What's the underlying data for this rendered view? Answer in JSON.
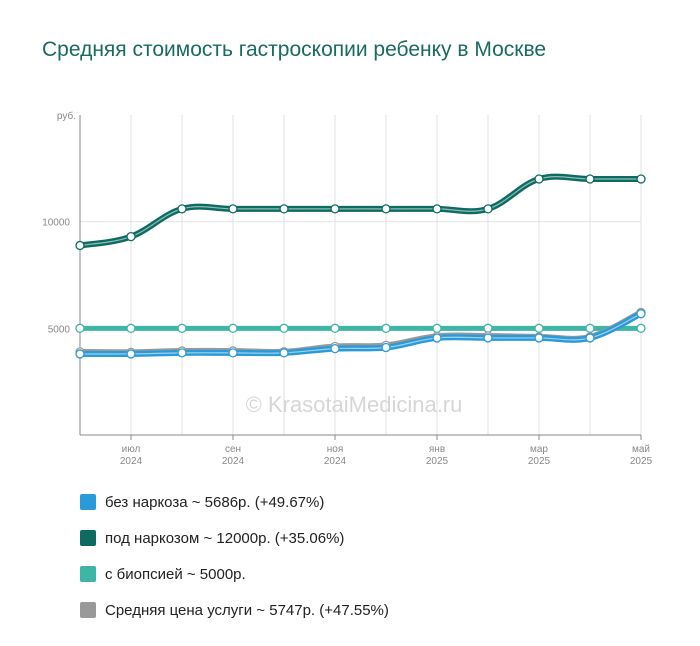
{
  "title": "Средняя стоимость гастроскопии ребенку в Москве",
  "watermark": "© KrasotaiMedicina.ru",
  "chart_data": {
    "type": "line",
    "y_unit": "руб.",
    "ylim": [
      0,
      15000
    ],
    "yticks": [
      {
        "value": 5000,
        "label": "5000"
      },
      {
        "value": 10000,
        "label": "10000"
      }
    ],
    "x": [
      0,
      1,
      2,
      3,
      4,
      5,
      6,
      7,
      8,
      9,
      10,
      11
    ],
    "xticks": [
      {
        "index": 1,
        "month": "июл",
        "year": "2024"
      },
      {
        "index": 3,
        "month": "сен",
        "year": "2024"
      },
      {
        "index": 5,
        "month": "ноя",
        "year": "2024"
      },
      {
        "index": 7,
        "month": "янв",
        "year": "2025"
      },
      {
        "index": 9,
        "month": "мар",
        "year": "2025"
      },
      {
        "index": 11,
        "month": "май",
        "year": "2025"
      }
    ],
    "grid": true,
    "series": [
      {
        "name": "без наркоза",
        "color": "#2a9ad9",
        "legend": "без наркоза ~ 5686р. (+49.67%)",
        "values": [
          3800,
          3800,
          3850,
          3850,
          3850,
          4050,
          4100,
          4550,
          4550,
          4550,
          4550,
          5686
        ]
      },
      {
        "name": "под наркозом",
        "color": "#0d6b62",
        "legend": "под наркозом ~ 12000р. (+35.06%)",
        "values": [
          8885,
          9300,
          10600,
          10600,
          10600,
          10600,
          10600,
          10600,
          10600,
          12000,
          12000,
          12000
        ]
      },
      {
        "name": "с биопсией",
        "color": "#3db5a7",
        "legend": "с биопсией ~ 5000р.",
        "values": [
          5000,
          5000,
          5000,
          5000,
          5000,
          5000,
          5000,
          5000,
          5000,
          5000,
          5000,
          5000
        ]
      },
      {
        "name": "Средняя цена услуги",
        "color": "#999999",
        "legend": "Средняя цена услуги ~ 5747р. (+47.55%)",
        "values": [
          3895,
          3880,
          3940,
          3940,
          3900,
          4150,
          4200,
          4630,
          4640,
          4600,
          4600,
          5747
        ]
      }
    ]
  }
}
